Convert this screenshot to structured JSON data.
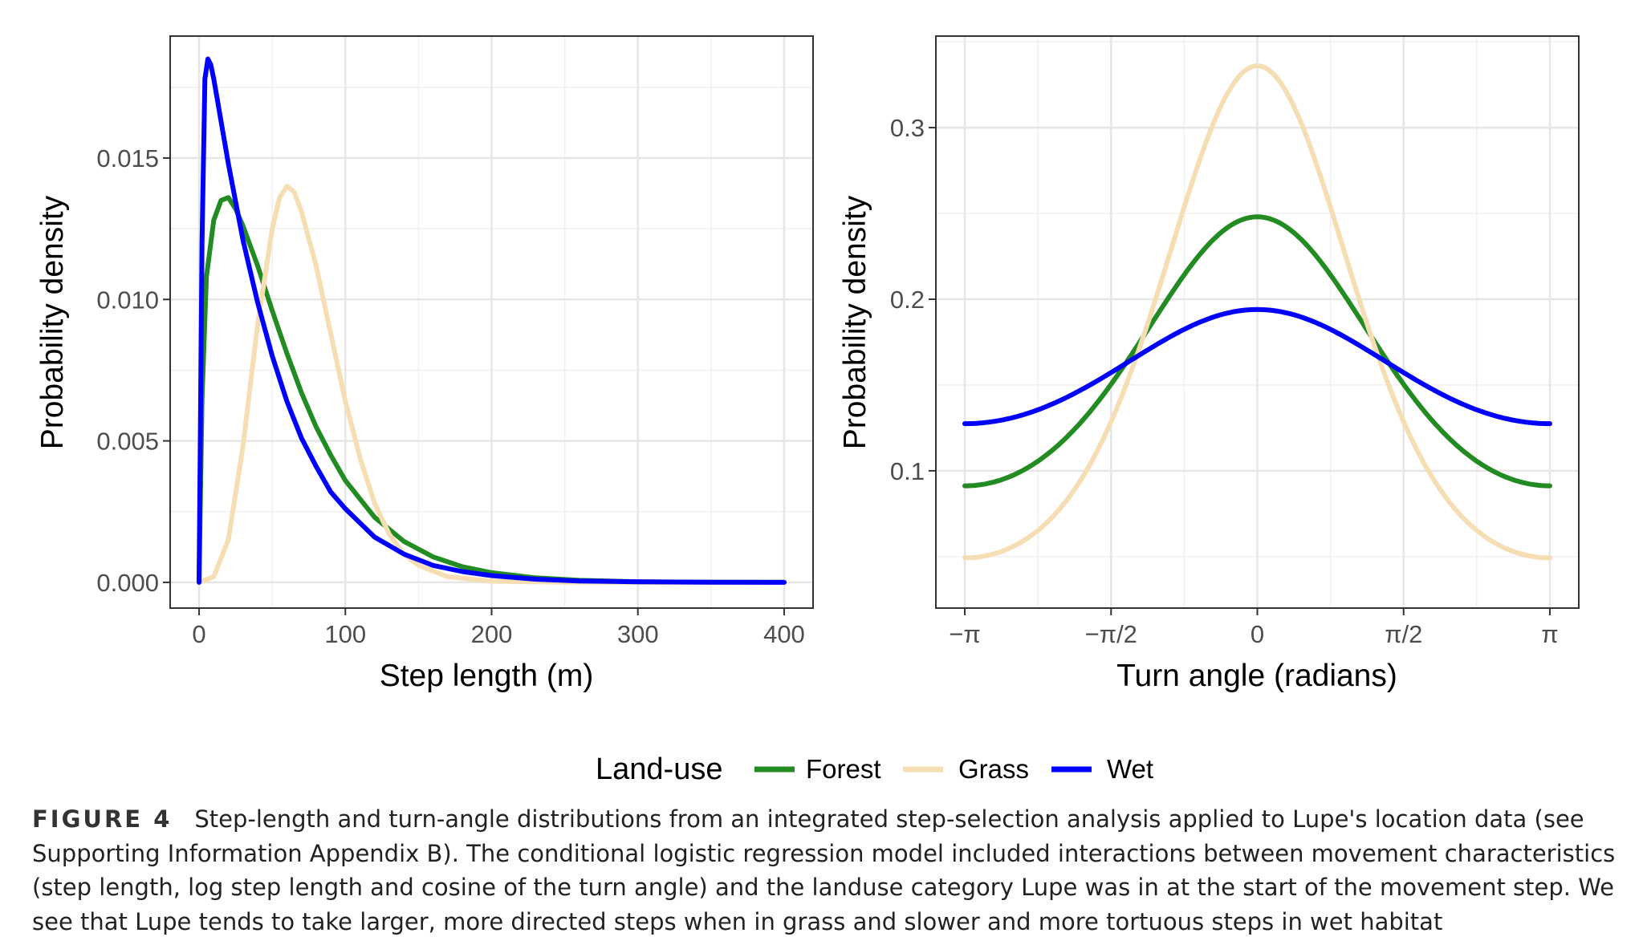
{
  "chart_data": [
    {
      "type": "line",
      "panel": "left",
      "xlabel": "Step length (m)",
      "ylabel": "Probability density",
      "xlim": [
        0,
        400
      ],
      "ylim": [
        0,
        0.0185
      ],
      "xticks": [
        0,
        100,
        200,
        300,
        400
      ],
      "xtick_labels": [
        "0",
        "100",
        "200",
        "300",
        "400"
      ],
      "yticks": [
        0.0,
        0.005,
        0.01,
        0.015
      ],
      "ytick_labels": [
        "0.000",
        "0.005",
        "0.010",
        "0.015"
      ],
      "grid": true,
      "series": [
        {
          "name": "Forest",
          "color": "#228B22",
          "x": [
            0,
            2,
            5,
            10,
            15,
            20,
            25,
            30,
            40,
            50,
            60,
            70,
            80,
            90,
            100,
            120,
            140,
            160,
            180,
            200,
            230,
            260,
            300,
            350,
            400
          ],
          "y": [
            0,
            0.0065,
            0.0108,
            0.0128,
            0.0135,
            0.0136,
            0.0132,
            0.0126,
            0.0112,
            0.0096,
            0.0081,
            0.0067,
            0.0055,
            0.0045,
            0.0036,
            0.0023,
            0.00145,
            0.0009,
            0.00055,
            0.00034,
            0.00016,
            7e-05,
            2e-05,
            5e-06,
            0
          ]
        },
        {
          "name": "Grass",
          "color": "#F5DEB3",
          "x": [
            0,
            10,
            20,
            30,
            40,
            50,
            55,
            60,
            65,
            70,
            80,
            90,
            100,
            110,
            120,
            130,
            140,
            150,
            170,
            200,
            250,
            300,
            400
          ],
          "y": [
            0,
            0.0002,
            0.0015,
            0.0048,
            0.0091,
            0.0125,
            0.0136,
            0.014,
            0.0138,
            0.0131,
            0.0112,
            0.0088,
            0.0064,
            0.0044,
            0.0028,
            0.0017,
            0.001,
            0.0006,
            0.0002,
            4e-05,
            2e-06,
            0,
            0
          ]
        },
        {
          "name": "Wet",
          "color": "#0000FF",
          "x": [
            0,
            2,
            4,
            6,
            8,
            10,
            15,
            20,
            30,
            40,
            50,
            60,
            70,
            80,
            90,
            100,
            120,
            140,
            160,
            180,
            200,
            230,
            260,
            300,
            350,
            400
          ],
          "y": [
            0,
            0.012,
            0.0178,
            0.0185,
            0.0183,
            0.0178,
            0.0163,
            0.0148,
            0.0121,
            0.0099,
            0.008,
            0.0064,
            0.0051,
            0.0041,
            0.0032,
            0.0026,
            0.0016,
            0.001,
            0.0006,
            0.00038,
            0.00024,
            0.00011,
            5e-05,
            2e-05,
            5e-06,
            0
          ]
        }
      ]
    },
    {
      "type": "line",
      "panel": "right",
      "xlabel": "Turn angle (radians)",
      "ylabel": "Probability density",
      "xlim": [
        -3.14159,
        3.14159
      ],
      "ylim": [
        0.035,
        0.34
      ],
      "xticks": [
        -3.14159,
        -1.5708,
        0,
        1.5708,
        3.14159
      ],
      "xtick_labels": [
        "−π",
        "−π/2",
        "0",
        "π/2",
        "π"
      ],
      "yticks": [
        0.1,
        0.2,
        0.3
      ],
      "ytick_labels": [
        "0.1",
        "0.2",
        "0.3"
      ],
      "grid": true,
      "series": [
        {
          "name": "Forest",
          "color": "#228B22",
          "distribution": "von-mises",
          "mu": 0,
          "kappa": 0.5,
          "peak": 0.248
        },
        {
          "name": "Grass",
          "color": "#F5DEB3",
          "distribution": "von-mises",
          "mu": 0,
          "kappa": 0.96,
          "peak": 0.336
        },
        {
          "name": "Wet",
          "color": "#0000FF",
          "distribution": "von-mises",
          "mu": 0,
          "kappa": 0.21,
          "peak": 0.194
        }
      ]
    }
  ],
  "legend": {
    "title": "Land-use",
    "items": [
      {
        "label": "Forest",
        "color": "#228B22"
      },
      {
        "label": "Grass",
        "color": "#F5DEB3"
      },
      {
        "label": "Wet",
        "color": "#0000FF"
      }
    ]
  },
  "caption": {
    "label": "FIGURE 4",
    "text": "Step-length and turn-angle distributions from an integrated step-selection analysis applied to Lupe's location data (see Supporting Information Appendix B). The conditional logistic regression model included interactions between movement characteristics (step length, log step length and cosine of the turn angle) and the landuse category Lupe was in at the start of the movement step. We see that Lupe tends to take larger, more directed steps when in grass and slower and more tortuous steps in wet habitat"
  }
}
